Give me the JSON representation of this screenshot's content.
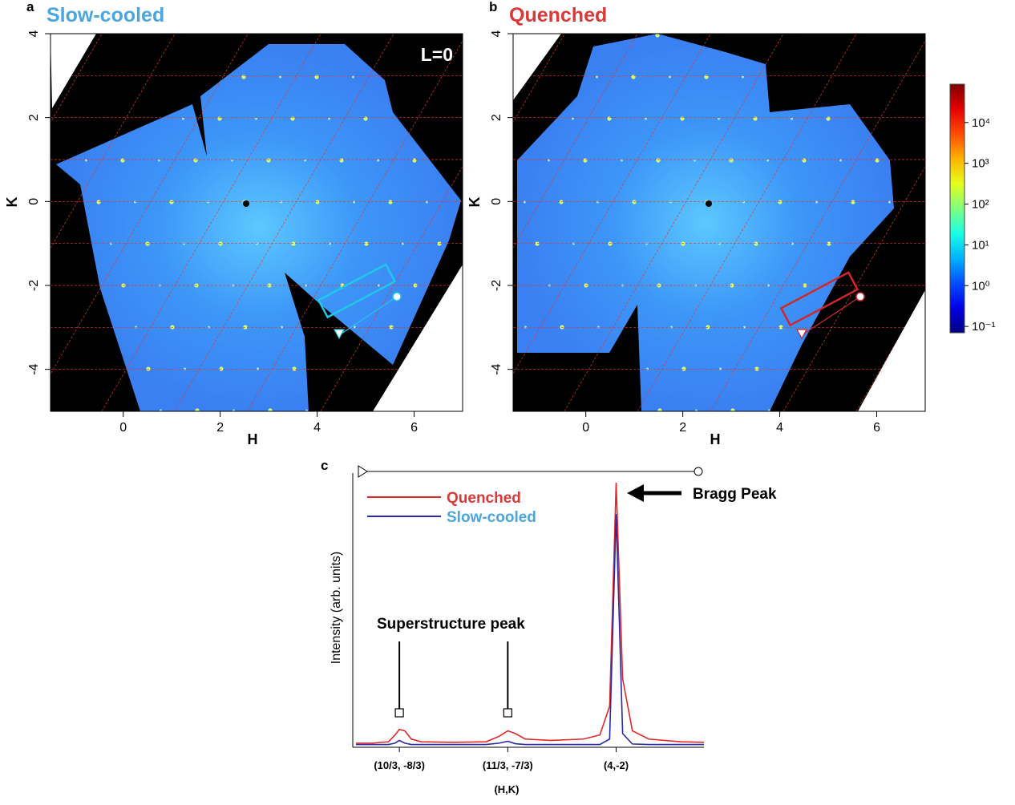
{
  "chart_data": [
    {
      "type": "heatmap",
      "panel_label": "a",
      "title": "Slow-cooled",
      "title_color": "#4ba6e0",
      "annotation": "L=0",
      "xlabel": "H",
      "ylabel": "K",
      "xlim": [
        -1.5,
        7
      ],
      "ylim": [
        -5,
        4
      ],
      "xticks": [
        0,
        2,
        4,
        6
      ],
      "yticks": [
        -4,
        -2,
        0,
        2,
        4
      ],
      "marker_color": "#20c8e8"
    },
    {
      "type": "heatmap",
      "panel_label": "b",
      "title": "Quenched",
      "title_color": "#d83a3a",
      "xlabel": "H",
      "ylabel": "K",
      "xlim": [
        -1.5,
        7
      ],
      "ylim": [
        -5,
        4
      ],
      "xticks": [
        0,
        2,
        4,
        6
      ],
      "yticks": [
        -4,
        -2,
        0,
        2,
        4
      ],
      "marker_color": "#d02828"
    },
    {
      "type": "colorbar",
      "colormap": "jet",
      "log_scale": true,
      "clim": [
        0.07,
        87000
      ],
      "ticks": [
        {
          "value": 10000,
          "label": "10⁴"
        },
        {
          "value": 1000,
          "label": "10³"
        },
        {
          "value": 100,
          "label": "10²"
        },
        {
          "value": 10,
          "label": "10¹"
        },
        {
          "value": 1,
          "label": "10⁰"
        },
        {
          "value": 0.1,
          "label": "10⁻¹"
        }
      ]
    },
    {
      "type": "line",
      "panel_label": "c",
      "ylabel": "Intensity (arb. units)",
      "xlabel": "(H,K)",
      "xlim": [
        3.19,
        4.27
      ],
      "ylim": [
        0,
        100
      ],
      "xticks": [
        {
          "value": 3.3333,
          "label": "(10/3, -8/3)"
        },
        {
          "value": 3.6667,
          "label": "(11/3, -7/3)"
        },
        {
          "value": 4,
          "label": "(4,-2)"
        }
      ],
      "x": [
        3.2,
        3.25,
        3.3,
        3.32,
        3.333,
        3.35,
        3.37,
        3.4,
        3.5,
        3.6,
        3.64,
        3.667,
        3.69,
        3.72,
        3.8,
        3.9,
        3.95,
        3.98,
        4.0,
        4.02,
        4.05,
        4.1,
        4.2,
        4.27
      ],
      "series": [
        {
          "name": "Quenched",
          "color": "#e02828",
          "label_color": "#d83a3a",
          "values": [
            1.5,
            1.5,
            2,
            4.5,
            6.5,
            6,
            3,
            2,
            1.8,
            2,
            4,
            6,
            5,
            3,
            2.5,
            3,
            4.5,
            15,
            96.5,
            25,
            6,
            3,
            2,
            1.8
          ]
        },
        {
          "name": "Slow-cooled",
          "color": "#2a2aa8",
          "label_color": "#4ba6e0",
          "values": [
            1,
            1,
            1,
            1.5,
            2.5,
            1.5,
            1,
            1,
            1,
            1,
            1.5,
            2.2,
            1.3,
            1,
            1,
            1,
            1,
            3,
            85,
            5,
            1.2,
            1,
            1,
            1
          ]
        }
      ],
      "annotations": [
        {
          "text": "Bragg Peak"
        },
        {
          "text": "Superstructure peak"
        }
      ]
    }
  ]
}
